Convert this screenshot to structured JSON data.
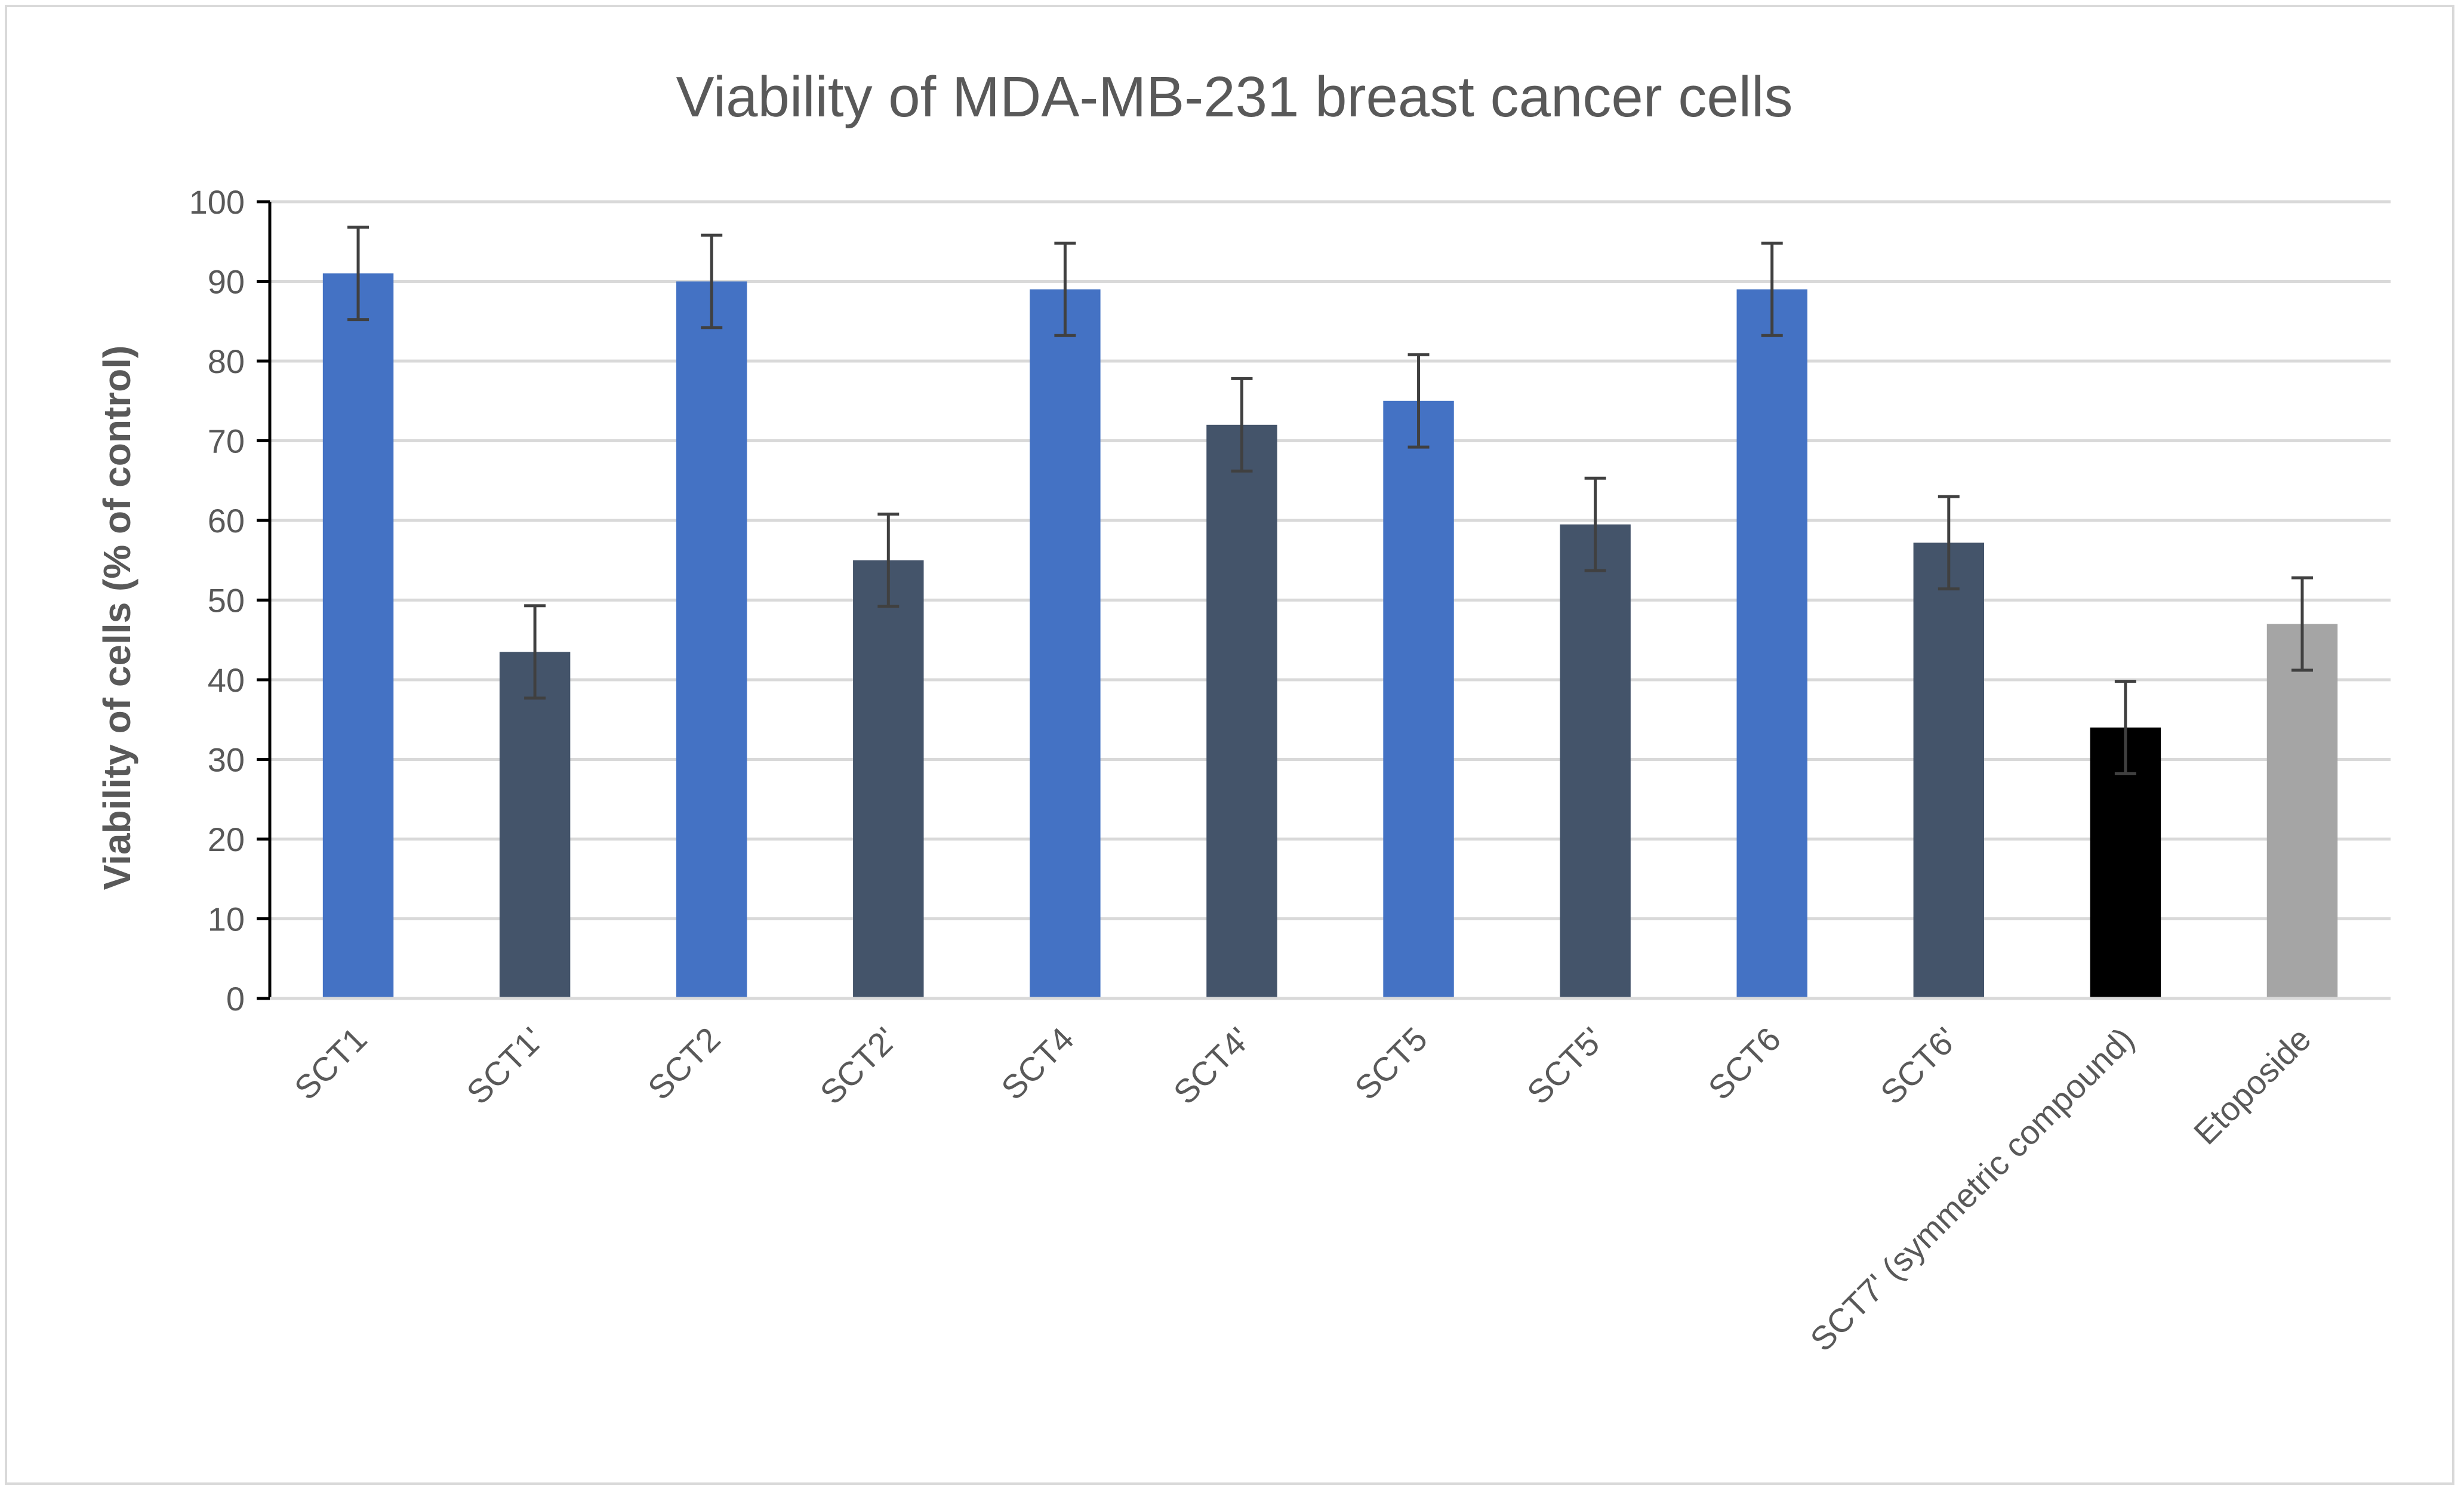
{
  "chart_data": {
    "type": "bar",
    "title": "Viability of MDA-MB-231 breast cancer cells",
    "xlabel": "",
    "ylabel": "Viability of cells (% of control)",
    "ylim": [
      0,
      100
    ],
    "yticks": [
      0,
      10,
      20,
      30,
      40,
      50,
      60,
      70,
      80,
      90,
      100
    ],
    "grid": true,
    "categories": [
      "SCT1",
      "SCT1'",
      "SCT2",
      "SCT2'",
      "SCT4",
      "SCT4'",
      "SCT5",
      "SCT5'",
      "SCT6",
      "SCT6'",
      "SCT7' (symmetric compound)",
      "Etoposide"
    ],
    "values": [
      91,
      43.5,
      90,
      55,
      89,
      72,
      75,
      59.5,
      89,
      57.2,
      34,
      47
    ],
    "errors": [
      5.8,
      5.8,
      5.8,
      5.8,
      5.8,
      5.8,
      5.8,
      5.8,
      5.8,
      5.8,
      5.8,
      5.8
    ],
    "bar_colors": [
      "#4472c4",
      "#44546a",
      "#4472c4",
      "#44546a",
      "#4472c4",
      "#44546a",
      "#4472c4",
      "#44546a",
      "#4472c4",
      "#44546a",
      "#000000",
      "#a5a5a5"
    ],
    "gridline_color": "#d9d9d9",
    "axis_color": "#000000",
    "errorbar_color": "#404040"
  }
}
